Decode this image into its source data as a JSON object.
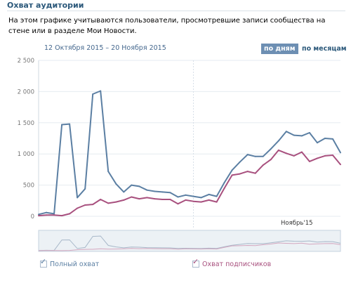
{
  "section_title": "Охват аудитории",
  "description": "На этом графике учитываются пользователи, просмотревшие записи сообщества на стене или в разделе Мои Новости.",
  "date_range": "12 Октября 2015 – 20 Ноября 2015",
  "toggle": {
    "days_label": "по дням",
    "months_label": "по месяцам",
    "active": "days"
  },
  "legend": {
    "full": {
      "label": "Полный охват",
      "checked": true
    },
    "subscribers": {
      "label": "Охват подписчиков",
      "checked": true
    }
  },
  "colors": {
    "full": "#5b7fa3",
    "subscribers": "#a8507e",
    "grid": "#e6ebf0",
    "ticks": "#777777"
  },
  "chart_data": {
    "type": "line",
    "title": "",
    "xlabel": "",
    "ylabel": "",
    "x": [
      "2015-10-12",
      "2015-10-13",
      "2015-10-14",
      "2015-10-15",
      "2015-10-16",
      "2015-10-17",
      "2015-10-18",
      "2015-10-19",
      "2015-10-20",
      "2015-10-21",
      "2015-10-22",
      "2015-10-23",
      "2015-10-24",
      "2015-10-25",
      "2015-10-26",
      "2015-10-27",
      "2015-10-28",
      "2015-10-29",
      "2015-10-30",
      "2015-10-31",
      "2015-11-01",
      "2015-11-02",
      "2015-11-03",
      "2015-11-04",
      "2015-11-05",
      "2015-11-06",
      "2015-11-07",
      "2015-11-08",
      "2015-11-09",
      "2015-11-10",
      "2015-11-11",
      "2015-11-12",
      "2015-11-13",
      "2015-11-14",
      "2015-11-15",
      "2015-11-16",
      "2015-11-17",
      "2015-11-18",
      "2015-11-19",
      "2015-11-20"
    ],
    "ylim": [
      0,
      2500
    ],
    "yticks": [
      "0",
      "500",
      "1 000",
      "1 500",
      "2 000",
      "2 500"
    ],
    "x_marker_label": "Ноябрь'15",
    "x_marker_date": "2015-11-01",
    "grid": true,
    "series": [
      {
        "name": "Полный охват",
        "values": [
          30,
          60,
          40,
          1470,
          1480,
          300,
          440,
          1960,
          2010,
          720,
          520,
          390,
          500,
          480,
          420,
          400,
          390,
          380,
          310,
          340,
          320,
          300,
          350,
          320,
          540,
          740,
          870,
          990,
          960,
          960,
          1080,
          1210,
          1360,
          1300,
          1290,
          1340,
          1180,
          1250,
          1240,
          1020
        ]
      },
      {
        "name": "Охват подписчиков",
        "values": [
          10,
          20,
          20,
          10,
          40,
          130,
          180,
          190,
          270,
          210,
          230,
          260,
          310,
          280,
          300,
          280,
          270,
          270,
          200,
          260,
          240,
          230,
          260,
          230,
          450,
          660,
          680,
          720,
          690,
          820,
          910,
          1060,
          1010,
          970,
          1030,
          880,
          930,
          970,
          980,
          830
        ]
      }
    ]
  }
}
